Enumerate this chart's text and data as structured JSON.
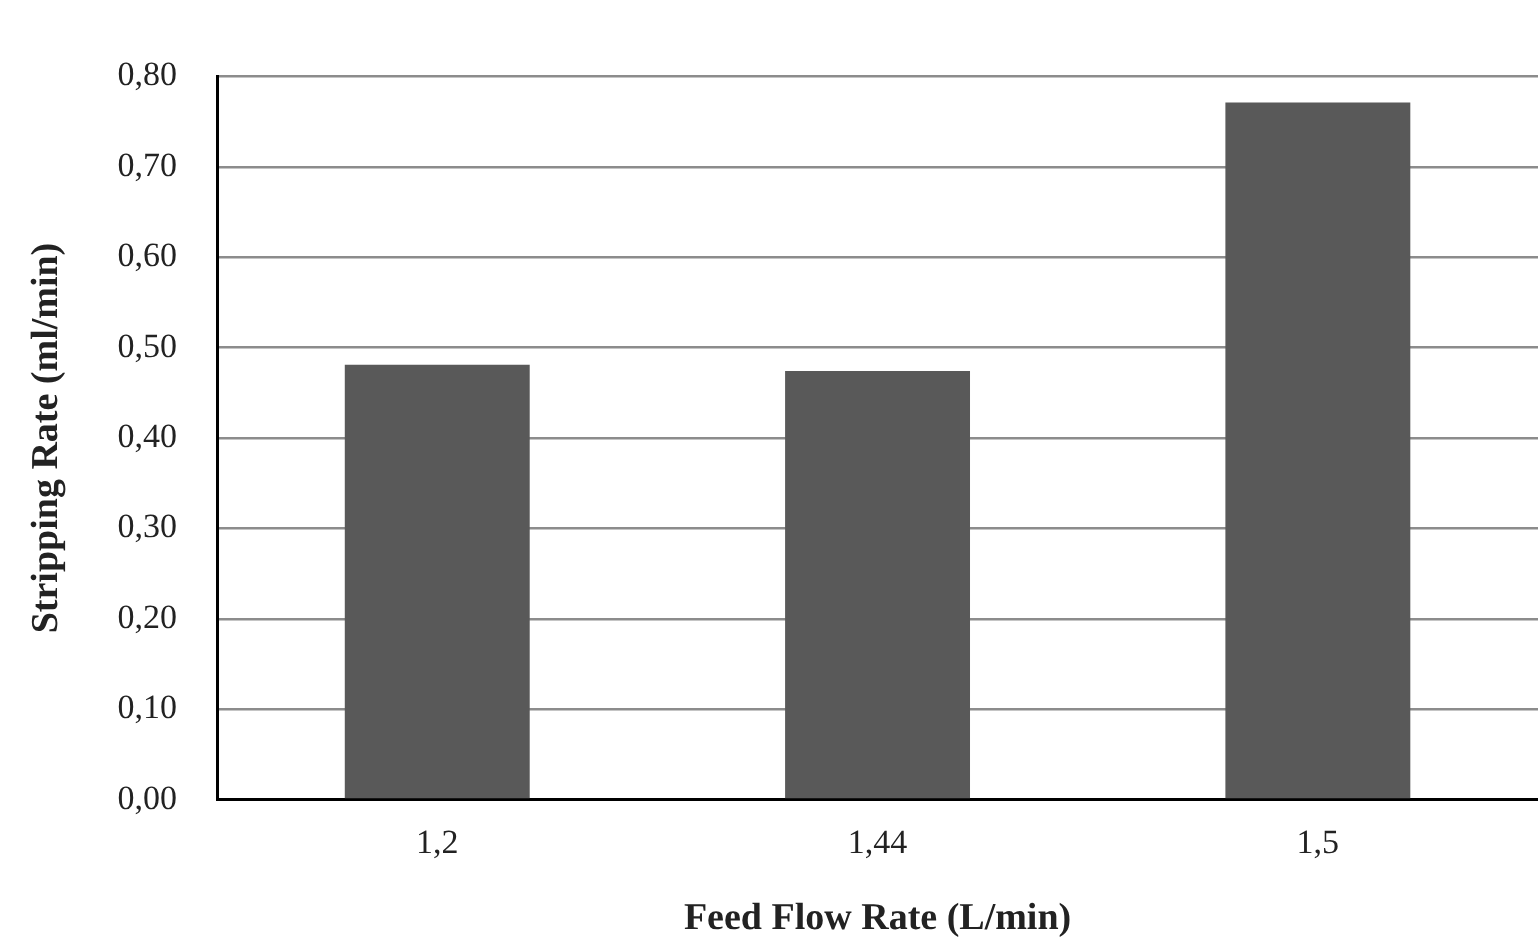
{
  "chart_data": {
    "type": "bar",
    "xlabel": "Feed Flow Rate (L/min)",
    "ylabel": "Stripping Rate (ml/min)",
    "categories": [
      "1,2",
      "1,44",
      "1,5"
    ],
    "values": [
      0.481,
      0.474,
      0.771
    ],
    "color": "#595959",
    "ylim": [
      0,
      0.8
    ],
    "yticks": [
      {
        "value": 0,
        "label": "0,00"
      },
      {
        "value": 0.1,
        "label": "0,10"
      },
      {
        "value": 0.2,
        "label": "0,20"
      },
      {
        "value": 0.3,
        "label": "0,30"
      },
      {
        "value": 0.4,
        "label": "0,40"
      },
      {
        "value": 0.5,
        "label": "0,50"
      },
      {
        "value": 0.6,
        "label": "0,60"
      },
      {
        "value": 0.7,
        "label": "0,70"
      },
      {
        "value": 0.8,
        "label": "0,80"
      }
    ],
    "grid": "y",
    "legend": false
  }
}
